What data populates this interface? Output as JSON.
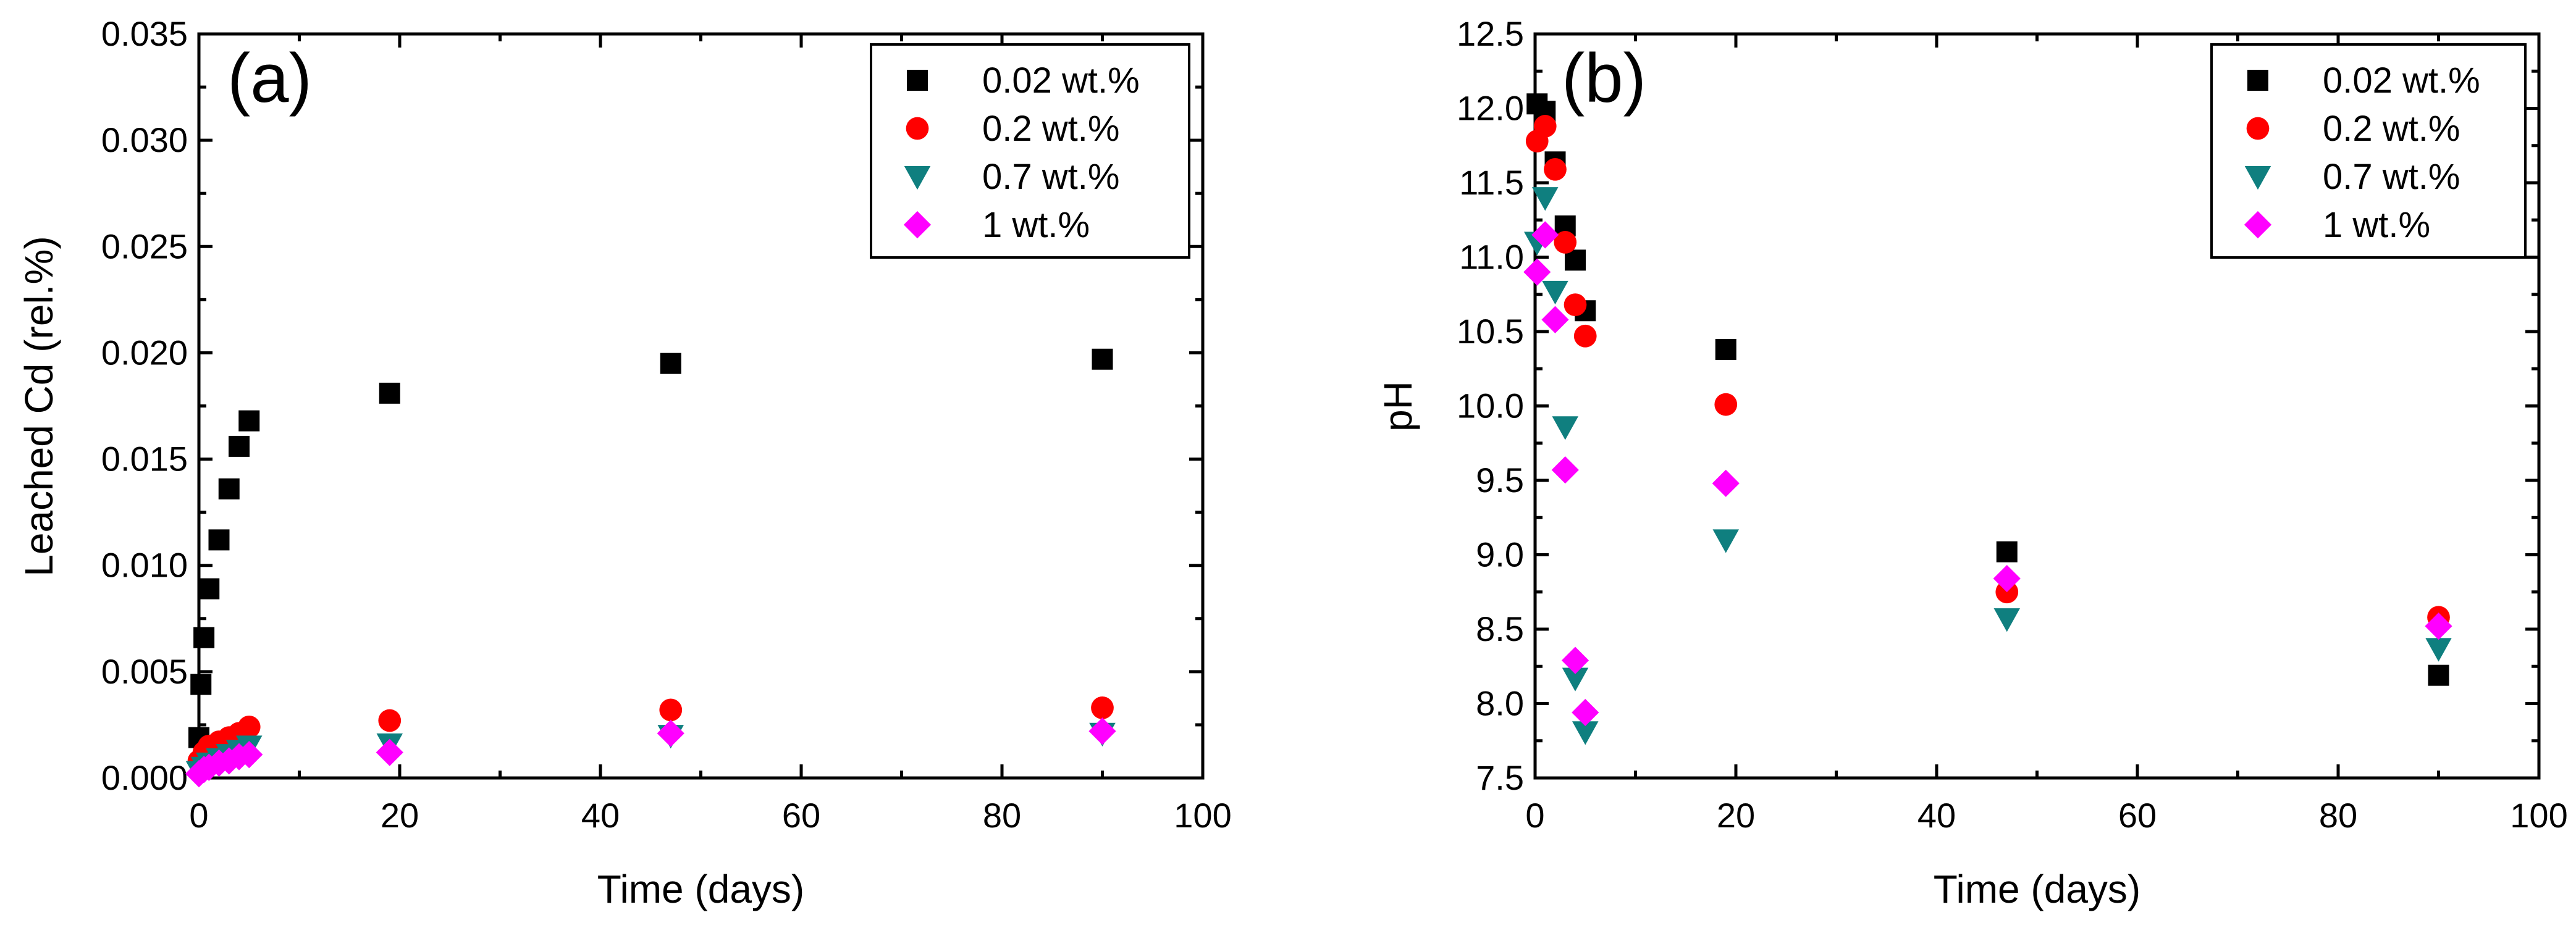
{
  "chart_data": [
    {
      "type": "scatter",
      "panel_label": "(a)",
      "xlabel": "Time (days)",
      "ylabel": "Leached Cd (rel.%)",
      "xlim": [
        0,
        100
      ],
      "ylim": [
        0,
        0.035
      ],
      "xticks": [
        0,
        20,
        40,
        60,
        80,
        100
      ],
      "xtick_labels": [
        "0",
        "20",
        "40",
        "60",
        "80",
        "100"
      ],
      "yticks": [
        0,
        0.005,
        0.01,
        0.015,
        0.02,
        0.025,
        0.03,
        0.035
      ],
      "ytick_labels": [
        "0.000",
        "0.005",
        "0.010",
        "0.015",
        "0.020",
        "0.025",
        "0.030",
        "0.035"
      ],
      "legend_position": "top-right",
      "series": [
        {
          "name": "0.02 wt.%",
          "marker": "square",
          "color": "#000000",
          "points": [
            [
              0,
              0.0019
            ],
            [
              0.2,
              0.0044
            ],
            [
              0.5,
              0.0066
            ],
            [
              1,
              0.0089
            ],
            [
              2,
              0.0112
            ],
            [
              3,
              0.0136
            ],
            [
              4,
              0.0156
            ],
            [
              5,
              0.0168
            ],
            [
              19,
              0.0181
            ],
            [
              47,
              0.0195
            ],
            [
              90,
              0.0197
            ]
          ]
        },
        {
          "name": "0.2 wt.%",
          "marker": "circle",
          "color": "#ff0000",
          "points": [
            [
              0,
              0.0008
            ],
            [
              0.5,
              0.0012
            ],
            [
              1,
              0.0015
            ],
            [
              2,
              0.0017
            ],
            [
              3,
              0.0019
            ],
            [
              4,
              0.0021
            ],
            [
              5,
              0.0024
            ],
            [
              19,
              0.0027
            ],
            [
              47,
              0.0032
            ],
            [
              90,
              0.0033
            ]
          ]
        },
        {
          "name": "0.7 wt.%",
          "marker": "triangle-down",
          "color": "#0f7f7f",
          "points": [
            [
              0,
              0.0003
            ],
            [
              0.5,
              0.0005
            ],
            [
              1,
              0.0007
            ],
            [
              2,
              0.0009
            ],
            [
              3,
              0.0011
            ],
            [
              4,
              0.0013
            ],
            [
              5,
              0.0015
            ],
            [
              19,
              0.0016
            ],
            [
              47,
              0.002
            ],
            [
              90,
              0.0021
            ]
          ]
        },
        {
          "name": "1 wt.%",
          "marker": "diamond",
          "color": "#ff00ff",
          "points": [
            [
              0,
              0.0002
            ],
            [
              0.5,
              0.0004
            ],
            [
              1,
              0.0005
            ],
            [
              2,
              0.0007
            ],
            [
              3,
              0.0008
            ],
            [
              4,
              0.001
            ],
            [
              5,
              0.0011
            ],
            [
              19,
              0.0012
            ],
            [
              47,
              0.0021
            ],
            [
              90,
              0.0022
            ]
          ]
        }
      ]
    },
    {
      "type": "scatter",
      "panel_label": "(b)",
      "xlabel": "Time (days)",
      "ylabel": "pH",
      "xlim": [
        0,
        100
      ],
      "ylim": [
        7.5,
        12.5
      ],
      "xticks": [
        0,
        20,
        40,
        60,
        80,
        100
      ],
      "xtick_labels": [
        "0",
        "20",
        "40",
        "60",
        "80",
        "100"
      ],
      "yticks": [
        7.5,
        8.0,
        8.5,
        9.0,
        9.5,
        10.0,
        10.5,
        11.0,
        11.5,
        12.0,
        12.5
      ],
      "ytick_labels": [
        "7.5",
        "8.0",
        "8.5",
        "9.0",
        "9.5",
        "10.0",
        "10.5",
        "11.0",
        "11.5",
        "12.0",
        "12.5"
      ],
      "legend_position": "top-right",
      "series": [
        {
          "name": "0.02 wt.%",
          "marker": "square",
          "color": "#000000",
          "points": [
            [
              0.2,
              12.03
            ],
            [
              1,
              11.98
            ],
            [
              2,
              11.64
            ],
            [
              3,
              11.21
            ],
            [
              4,
              10.98
            ],
            [
              5,
              10.64
            ],
            [
              19,
              10.38
            ],
            [
              47,
              9.02
            ],
            [
              90,
              8.19
            ]
          ]
        },
        {
          "name": "0.2 wt.%",
          "marker": "circle",
          "color": "#ff0000",
          "points": [
            [
              0.2,
              11.78
            ],
            [
              1,
              11.88
            ],
            [
              2,
              11.59
            ],
            [
              3,
              11.1
            ],
            [
              4,
              10.68
            ],
            [
              5,
              10.47
            ],
            [
              19,
              10.01
            ],
            [
              47,
              8.75
            ],
            [
              90,
              8.58
            ]
          ]
        },
        {
          "name": "0.7 wt.%",
          "marker": "triangle-down",
          "color": "#0f7f7f",
          "points": [
            [
              0.2,
              11.1
            ],
            [
              1,
              11.4
            ],
            [
              2,
              10.77
            ],
            [
              3,
              9.86
            ],
            [
              4,
              8.17
            ],
            [
              5,
              7.81
            ],
            [
              19,
              9.1
            ],
            [
              47,
              8.57
            ],
            [
              90,
              8.37
            ]
          ]
        },
        {
          "name": "1 wt.%",
          "marker": "diamond",
          "color": "#ff00ff",
          "points": [
            [
              0.2,
              10.9
            ],
            [
              1,
              11.15
            ],
            [
              2,
              10.58
            ],
            [
              3,
              9.57
            ],
            [
              4,
              8.29
            ],
            [
              5,
              7.94
            ],
            [
              19,
              9.48
            ],
            [
              47,
              8.84
            ],
            [
              90,
              8.52
            ]
          ]
        }
      ]
    }
  ]
}
